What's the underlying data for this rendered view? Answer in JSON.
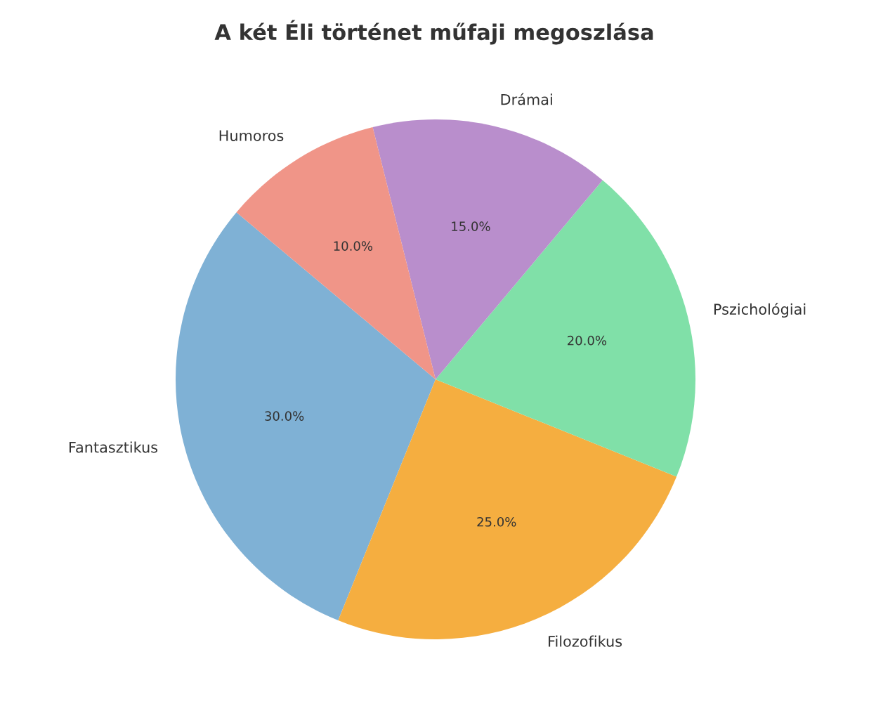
{
  "chart_data": {
    "type": "pie",
    "title": "A két Éli történet műfaji megoszlása",
    "categories": [
      "Fantasztikus",
      "Filozofikus",
      "Pszichológiai",
      "Drámai",
      "Humoros"
    ],
    "values": [
      30,
      25,
      20,
      15,
      10
    ],
    "colors": [
      "#7fb1d5",
      "#f5ae40",
      "#80e0a8",
      "#b98ecc",
      "#f09588"
    ],
    "value_labels": [
      "30.0%",
      "25.0%",
      "20.0%",
      "15.0%",
      "10.0%"
    ]
  }
}
